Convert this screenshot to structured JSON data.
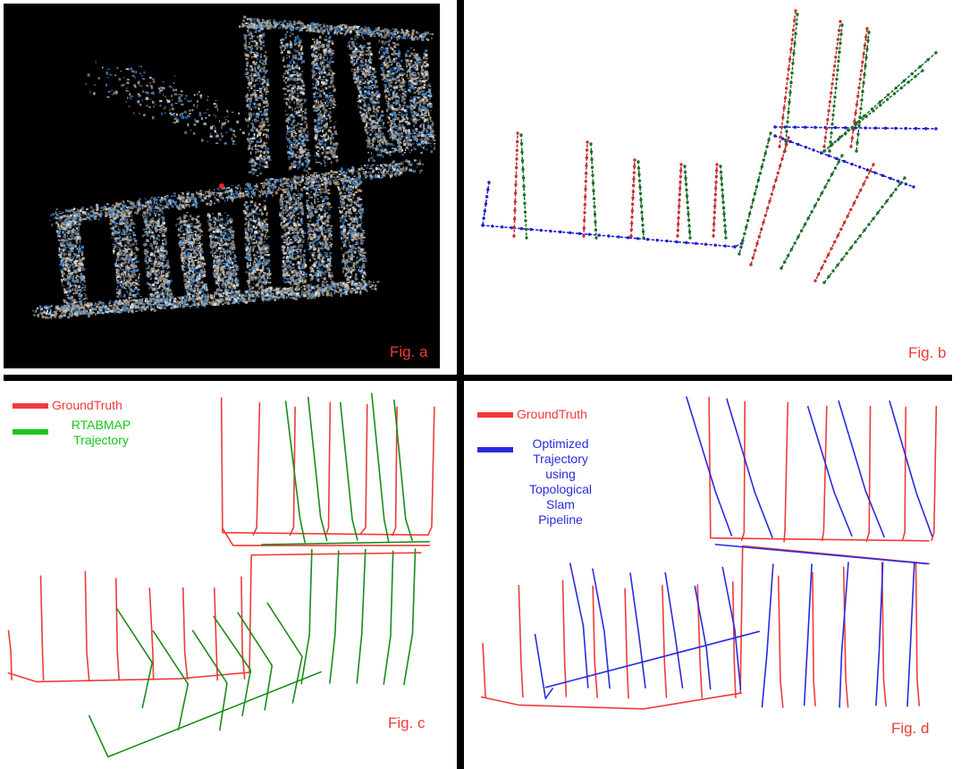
{
  "colors": {
    "ground_truth": "#f03a3a",
    "rtabmap": "#1a8c1a",
    "optimized": "#2a2ae0",
    "node_green": "#1c6d2a",
    "node_blue": "#1d1ed0",
    "label_red": "#f03a3a",
    "legend_green": "#16c716"
  },
  "panel_a": {
    "label": "Fig. a",
    "content": "3D point cloud reconstruction"
  },
  "panel_b": {
    "label": "Fig. b"
  },
  "panel_c": {
    "label": "Fig. c",
    "legend": [
      {
        "text": "GroundTruth",
        "color": "#f03a3a"
      },
      {
        "text": "RTABMAP Trajectory",
        "line1": "RTABMAP",
        "line2": "Trajectory",
        "color": "#16c716"
      }
    ]
  },
  "panel_d": {
    "label": "Fig. d",
    "legend": [
      {
        "text": "GroundTruth",
        "color": "#f03a3a"
      },
      {
        "text": "Optimized Trajectory using Topological Slam Pipeline",
        "lines": [
          "Optimized",
          "Trajectory",
          "using",
          "Topological",
          "Slam",
          "Pipeline"
        ],
        "color": "#2a2ae0"
      }
    ]
  }
}
